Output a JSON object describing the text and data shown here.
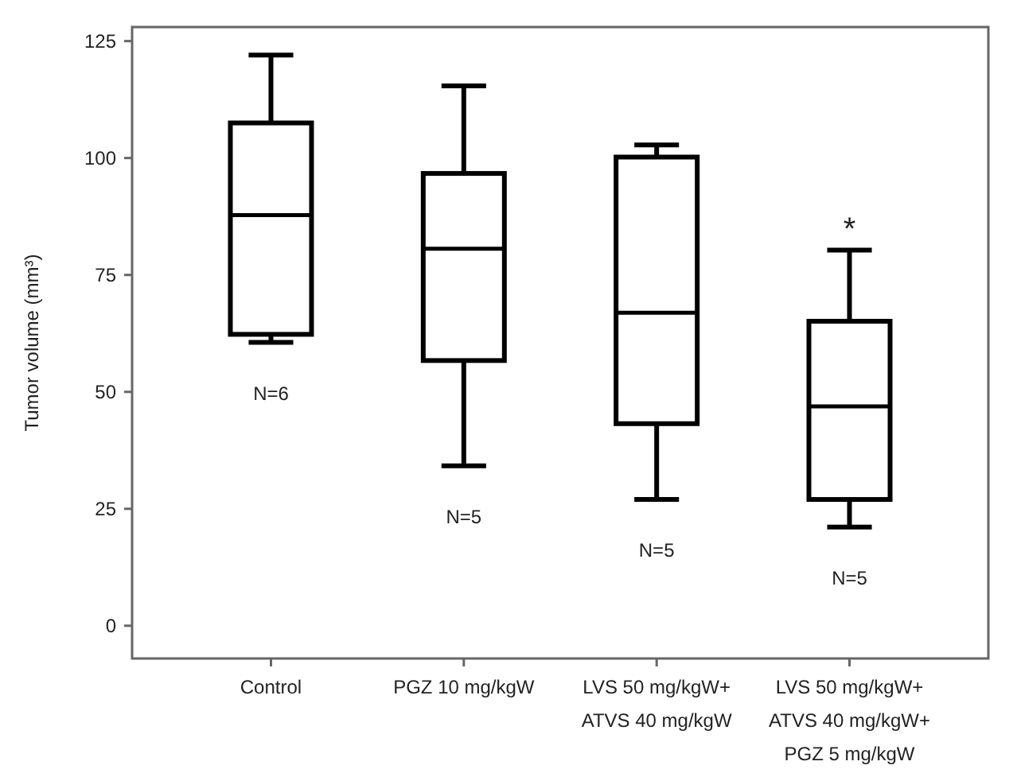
{
  "chart_data": {
    "type": "box",
    "ylabel": "Tumor volume (mm³)",
    "categories": [
      "Control",
      "PGZ 10 mg/kgW",
      "LVS 50 mg/kgW+\nATVS 40 mg/kgW",
      "LVS 50 mg/kgW+\nATVS 40 mg/kgW+\nPGZ 5 mg/kgW"
    ],
    "boxes": [
      {
        "low": 60.6,
        "q1": 62.3,
        "median": 87.8,
        "q3": 107.5,
        "high": 122
      },
      {
        "low": 34.2,
        "q1": 56.7,
        "median": 80.6,
        "q3": 96.7,
        "high": 115.4
      },
      {
        "low": 27,
        "q1": 43.2,
        "median": 66.9,
        "q3": 100.2,
        "high": 102.8
      },
      {
        "low": 21.1,
        "q1": 27,
        "median": 46.9,
        "q3": 65.1,
        "high": 80.3
      }
    ],
    "color": "#000000",
    "ylim": [
      -7,
      128
    ],
    "yticks": [
      0,
      25,
      50,
      75,
      100,
      125
    ],
    "grid": false,
    "annotations": [
      "N=6",
      "N=5",
      "N=5",
      "N=5",
      "*"
    ]
  }
}
